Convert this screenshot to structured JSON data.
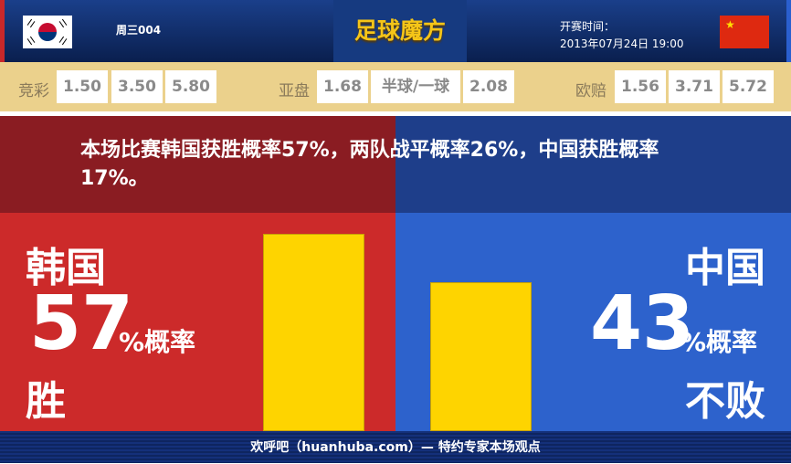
{
  "header": {
    "match_no": "周三004",
    "logo_text": "足球魔方",
    "time_label": "开赛时间：",
    "time_value": "2013年07月24日 19:00",
    "home_flag": "south-korea-flag-icon",
    "away_flag": "china-flag-icon"
  },
  "odds": {
    "jingcai": {
      "label": "竞彩",
      "values": [
        "1.50",
        "3.50",
        "5.80"
      ]
    },
    "yapan": {
      "label": "亚盘",
      "values": [
        "1.68",
        "半球/一球",
        "2.08"
      ]
    },
    "oupei": {
      "label": "欧赔",
      "values": [
        "1.56",
        "3.71",
        "5.72"
      ]
    }
  },
  "summary": "本场比赛韩国获胜概率57%，两队战平概率26%，中国获胜概率17%。",
  "home": {
    "team": "韩国",
    "percent": "57",
    "unit": "%概率",
    "outcome": "胜",
    "value": 57
  },
  "away": {
    "team": "中国",
    "percent": "43",
    "unit": "%概率",
    "outcome": "不败",
    "value": 43
  },
  "colors": {
    "home": "#cc2a2a",
    "away": "#2d62cc",
    "bar": "#fed400",
    "odds_bg": "#ebd18c"
  },
  "footer": "欢呼吧（huanhuba.com）— 特约专家本场观点"
}
